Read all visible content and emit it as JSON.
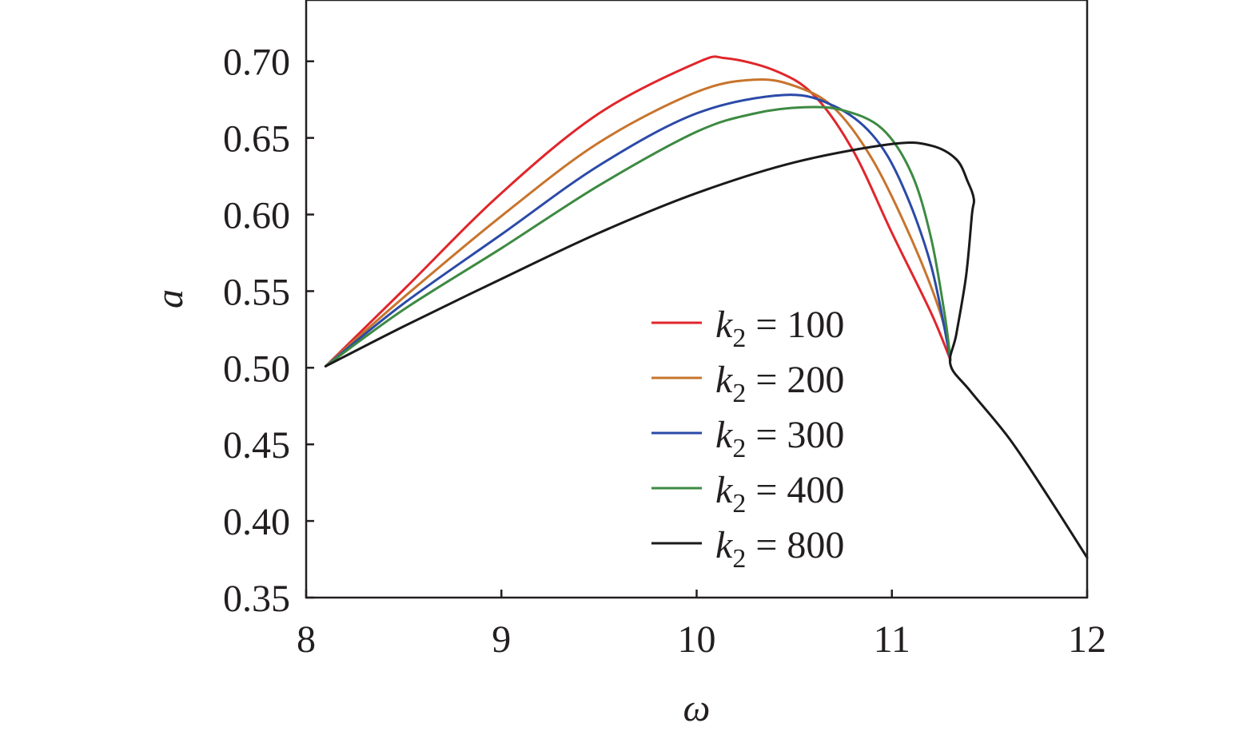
{
  "chart_data": {
    "type": "line",
    "xlabel": "ω",
    "ylabel": "a",
    "xlim": [
      8,
      12
    ],
    "ylim": [
      0.35,
      0.74
    ],
    "x_ticks": [
      {
        "value": 8,
        "label": "8"
      },
      {
        "value": 9,
        "label": "9"
      },
      {
        "value": 10,
        "label": "10"
      },
      {
        "value": 11,
        "label": "11"
      },
      {
        "value": 12,
        "label": "12"
      }
    ],
    "y_ticks": [
      {
        "value": 0.35,
        "label": "0.35"
      },
      {
        "value": 0.4,
        "label": "0.40"
      },
      {
        "value": 0.45,
        "label": "0.45"
      },
      {
        "value": 0.5,
        "label": "0.50"
      },
      {
        "value": 0.55,
        "label": "0.55"
      },
      {
        "value": 0.6,
        "label": "0.60"
      },
      {
        "value": 0.65,
        "label": "0.65"
      },
      {
        "value": 0.7,
        "label": "0.70"
      }
    ],
    "grid": false,
    "legend_placement": "lower-right",
    "legend_symbol": "k",
    "legend_subscript": "2",
    "series": [
      {
        "name": "k2 = 100",
        "legend_value": "= 100",
        "color": "#e0262b",
        "points": [
          [
            8.1,
            0.501
          ],
          [
            8.5,
            0.551
          ],
          [
            9.0,
            0.614
          ],
          [
            9.5,
            0.666
          ],
          [
            10.0,
            0.699
          ],
          [
            10.15,
            0.702
          ],
          [
            10.4,
            0.694
          ],
          [
            10.6,
            0.678
          ],
          [
            10.8,
            0.642
          ],
          [
            11.0,
            0.588
          ],
          [
            11.2,
            0.536
          ],
          [
            11.3,
            0.505
          ]
        ]
      },
      {
        "name": "k2 = 200",
        "legend_value": "= 200",
        "color": "#c8742c",
        "points": [
          [
            8.1,
            0.501
          ],
          [
            8.5,
            0.546
          ],
          [
            9.0,
            0.599
          ],
          [
            9.5,
            0.647
          ],
          [
            10.0,
            0.68
          ],
          [
            10.3,
            0.688
          ],
          [
            10.5,
            0.684
          ],
          [
            10.7,
            0.67
          ],
          [
            10.9,
            0.636
          ],
          [
            11.1,
            0.584
          ],
          [
            11.25,
            0.535
          ],
          [
            11.3,
            0.505
          ]
        ]
      },
      {
        "name": "k2 = 300",
        "legend_value": "= 300",
        "color": "#2b4aa8",
        "points": [
          [
            8.1,
            0.501
          ],
          [
            8.5,
            0.542
          ],
          [
            9.0,
            0.587
          ],
          [
            9.5,
            0.632
          ],
          [
            10.0,
            0.666
          ],
          [
            10.45,
            0.678
          ],
          [
            10.7,
            0.671
          ],
          [
            10.9,
            0.652
          ],
          [
            11.05,
            0.62
          ],
          [
            11.2,
            0.567
          ],
          [
            11.3,
            0.505
          ]
        ]
      },
      {
        "name": "k2 = 400",
        "legend_value": "= 400",
        "color": "#3d8a42",
        "points": [
          [
            8.1,
            0.501
          ],
          [
            8.5,
            0.538
          ],
          [
            9.0,
            0.578
          ],
          [
            9.5,
            0.619
          ],
          [
            10.0,
            0.654
          ],
          [
            10.3,
            0.666
          ],
          [
            10.55,
            0.67
          ],
          [
            10.75,
            0.668
          ],
          [
            10.95,
            0.656
          ],
          [
            11.1,
            0.627
          ],
          [
            11.2,
            0.585
          ],
          [
            11.27,
            0.535
          ],
          [
            11.3,
            0.505
          ]
        ]
      },
      {
        "name": "k2 = 800",
        "legend_value": "= 800",
        "color": "#1a1a1a",
        "points": [
          [
            8.1,
            0.501
          ],
          [
            8.5,
            0.527
          ],
          [
            9.0,
            0.558
          ],
          [
            9.5,
            0.588
          ],
          [
            10.0,
            0.614
          ],
          [
            10.5,
            0.634
          ],
          [
            11.0,
            0.646
          ],
          [
            11.2,
            0.645
          ],
          [
            11.33,
            0.636
          ],
          [
            11.39,
            0.621
          ],
          [
            11.42,
            0.61
          ],
          [
            11.41,
            0.6
          ],
          [
            11.38,
            0.56
          ],
          [
            11.33,
            0.522
          ],
          [
            11.3,
            0.502
          ],
          [
            11.4,
            0.485
          ],
          [
            11.6,
            0.454
          ],
          [
            11.8,
            0.416
          ],
          [
            12.0,
            0.376
          ]
        ]
      }
    ]
  }
}
